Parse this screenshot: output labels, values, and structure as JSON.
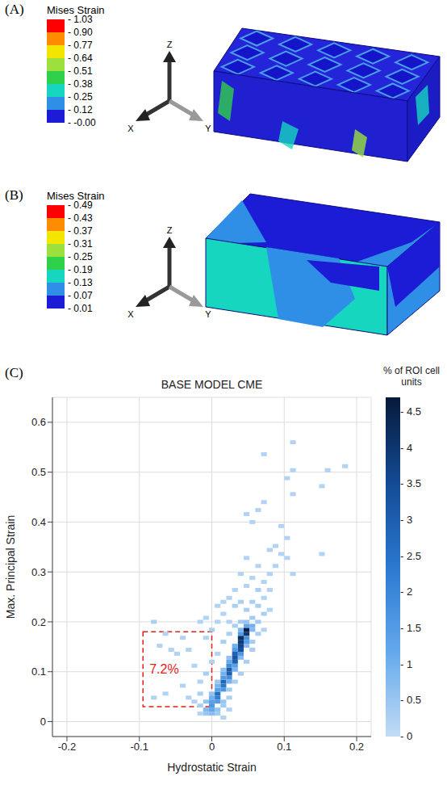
{
  "panels": [
    {
      "letter": "(A)",
      "colorbar": {
        "title": "Mises Strain",
        "ticks": [
          1.03,
          {
            "value": 0.9,
            "label": "0.90"
          },
          0.77,
          0.64,
          0.51,
          0.38,
          0.25,
          0.12,
          {
            "value": 0,
            "label": "-0.00"
          }
        ],
        "colors": [
          "#ff0000",
          "#ff8c00",
          "#f2e600",
          "#9be03c",
          "#2fd04a",
          "#16d6c0",
          "#2f8fe6",
          "#1c1cd6"
        ]
      },
      "axes": [
        "X",
        "Y",
        "Z"
      ]
    },
    {
      "letter": "(B)",
      "colorbar": {
        "title": "Mises Strain",
        "ticks": [
          0.49,
          0.43,
          0.37,
          0.31,
          0.25,
          0.19,
          0.13,
          0.07,
          0.01
        ],
        "colors": [
          "#ff0000",
          "#ff8c00",
          "#f2e600",
          "#9be03c",
          "#2fd04a",
          "#16d6c0",
          "#2f8fe6",
          "#1c1cd6"
        ]
      },
      "axes": [
        "X",
        "Y",
        "Z"
      ]
    }
  ],
  "chart_data": {
    "type": "heatmap",
    "letter": "(C)",
    "title": "BASE MODEL CME",
    "x_label": "Hydrostatic Strain",
    "y_label": "Max. Principal Strain",
    "xlim": [
      -0.22,
      0.22
    ],
    "xticks": [
      -0.2,
      -0.1,
      0,
      0.1,
      0.2
    ],
    "ylim": [
      -0.03,
      0.65
    ],
    "yticks": [
      0,
      0.1,
      0.2,
      0.3,
      0.4,
      0.5,
      0.6
    ],
    "grid": true,
    "cell_size": [
      0.008,
      0.008
    ],
    "cells": [
      [
        0,
        0.032,
        1.6
      ],
      [
        0.008,
        0.048,
        2.2
      ],
      [
        0.008,
        0.056,
        2.6
      ],
      [
        0.016,
        0.072,
        2.4
      ],
      [
        0.016,
        0.08,
        2.8
      ],
      [
        0.024,
        0.096,
        3.0
      ],
      [
        0.024,
        0.104,
        3.1
      ],
      [
        0.032,
        0.12,
        3.0
      ],
      [
        0.032,
        0.128,
        3.3
      ],
      [
        0.032,
        0.136,
        2.9
      ],
      [
        0.04,
        0.144,
        3.4
      ],
      [
        0.04,
        0.152,
        3.6
      ],
      [
        0.04,
        0.16,
        3.9
      ],
      [
        0.04,
        0.168,
        4.2
      ],
      [
        0.048,
        0.176,
        4.0
      ],
      [
        0.048,
        0.184,
        4.6
      ],
      [
        0,
        0.024,
        1.2
      ],
      [
        0,
        0.04,
        1.4
      ],
      [
        -0.008,
        0.024,
        0.8
      ],
      [
        0.008,
        0.04,
        1.5
      ],
      [
        0.008,
        0.064,
        1.4
      ],
      [
        0,
        0.048,
        1.0
      ],
      [
        0.016,
        0.064,
        1.6
      ],
      [
        0.016,
        0.088,
        1.5
      ],
      [
        0.024,
        0.088,
        1.8
      ],
      [
        0.008,
        0.072,
        0.9
      ],
      [
        0.024,
        0.112,
        1.9
      ],
      [
        0.016,
        0.096,
        1.0
      ],
      [
        0.032,
        0.112,
        1.4
      ],
      [
        0.024,
        0.12,
        1.2
      ],
      [
        0.04,
        0.136,
        1.6
      ],
      [
        0.032,
        0.144,
        1.5
      ],
      [
        0.048,
        0.16,
        1.4
      ],
      [
        0.048,
        0.168,
        1.7
      ],
      [
        0.032,
        0.152,
        1.0
      ],
      [
        0.04,
        0.176,
        1.5
      ],
      [
        0.056,
        0.192,
        1.0
      ],
      [
        0.04,
        0.184,
        0.9
      ],
      [
        0.048,
        0.192,
        1.2
      ],
      [
        0.056,
        0.184,
        0.8
      ],
      [
        0.024,
        0.08,
        1.0
      ],
      [
        0.032,
        0.104,
        0.9
      ],
      [
        0.04,
        0.128,
        0.8
      ],
      [
        0.048,
        0.152,
        0.7
      ],
      [
        0.016,
        0.104,
        0.6
      ],
      [
        0.024,
        0.128,
        0.6
      ],
      [
        0.008,
        0.08,
        0.5
      ],
      [
        -0.008,
        0.04,
        0.6
      ],
      [
        0,
        0.056,
        0.6
      ],
      [
        -0.008,
        0.016,
        0.5
      ],
      [
        0,
        0.016,
        0.7
      ],
      [
        0.008,
        0.016,
        0.4
      ],
      [
        0.008,
        0.024,
        0.6
      ],
      [
        0.016,
        0.032,
        0.4
      ],
      [
        0.016,
        0.04,
        0.5
      ],
      [
        0.024,
        0.048,
        0.3
      ],
      [
        0.024,
        0.064,
        0.4
      ],
      [
        0.032,
        0.08,
        0.3
      ],
      [
        0.04,
        0.096,
        0.3
      ],
      [
        0.048,
        0.12,
        0.3
      ],
      [
        0.056,
        0.144,
        0.3
      ],
      [
        0.056,
        0.16,
        0.4
      ],
      [
        0.064,
        0.176,
        0.3
      ],
      [
        0.064,
        0.2,
        0.4
      ],
      [
        0.056,
        0.208,
        0.4
      ],
      [
        0.048,
        0.2,
        0.5
      ],
      [
        0.04,
        0.2,
        0.4
      ],
      [
        0.032,
        0.192,
        0.3
      ],
      [
        0.024,
        0.176,
        0.3
      ],
      [
        0.016,
        0.16,
        0.3
      ],
      [
        0.008,
        0.136,
        0.2
      ],
      [
        0,
        0.12,
        0.2
      ],
      [
        -0.008,
        0.096,
        0.3
      ],
      [
        -0.016,
        0.08,
        0.2
      ],
      [
        -0.016,
        0.056,
        0.3
      ],
      [
        -0.024,
        0.04,
        0.2
      ],
      [
        -0.016,
        0.032,
        0.3
      ],
      [
        -0.032,
        0.048,
        0.2
      ],
      [
        -0.04,
        0.072,
        0.2
      ],
      [
        -0.08,
        0.048,
        0.2
      ],
      [
        -0.048,
        0.136,
        0.2
      ],
      [
        -0.064,
        0.056,
        0.2
      ],
      [
        -0.072,
        0.152,
        0.2
      ],
      [
        -0.08,
        0.2,
        0.3
      ],
      [
        -0.056,
        0.144,
        0.2
      ],
      [
        -0.064,
        0.176,
        0.2
      ],
      [
        -0.04,
        0.168,
        0.2
      ],
      [
        -0.032,
        0.144,
        0.2
      ],
      [
        -0.024,
        0.112,
        0.2
      ],
      [
        -0.008,
        0.168,
        0.2
      ],
      [
        0,
        0.184,
        0.3
      ],
      [
        0.008,
        0.2,
        0.2
      ],
      [
        0.016,
        0.216,
        0.2
      ],
      [
        0.032,
        0.232,
        0.3
      ],
      [
        0.04,
        0.24,
        0.3
      ],
      [
        0.048,
        0.224,
        0.3
      ],
      [
        0.056,
        0.24,
        0.3
      ],
      [
        0.064,
        0.232,
        0.3
      ],
      [
        0.072,
        0.216,
        0.3
      ],
      [
        0.072,
        0.248,
        0.2
      ],
      [
        0.064,
        0.264,
        0.3
      ],
      [
        0.048,
        0.272,
        0.2
      ],
      [
        0.056,
        0.288,
        0.2
      ],
      [
        0.08,
        0.264,
        0.2
      ],
      [
        0.072,
        0.28,
        0.2
      ],
      [
        0.04,
        0.296,
        0.2
      ],
      [
        0.064,
        0.312,
        0.2
      ],
      [
        0.048,
        0.328,
        0.2
      ],
      [
        0.08,
        0.296,
        0.2
      ],
      [
        0.088,
        0.312,
        0.2
      ],
      [
        0.032,
        0.264,
        0.2
      ],
      [
        0.024,
        0.248,
        0.2
      ],
      [
        0.008,
        0.232,
        0.2
      ],
      [
        0.072,
        0.184,
        0.2
      ],
      [
        0.08,
        0.224,
        0.2
      ],
      [
        -0.008,
        0.208,
        0.2
      ],
      [
        0.016,
        0.24,
        0.2
      ],
      [
        0.024,
        0.2,
        0.2
      ],
      [
        -0.016,
        0.2,
        0.2
      ],
      [
        0.016,
        0.008,
        0.2
      ],
      [
        0.024,
        0.024,
        0.2
      ],
      [
        -0.016,
        0.016,
        0.2
      ],
      [
        0.072,
        0.536,
        0.2
      ],
      [
        0.112,
        0.56,
        0.2
      ],
      [
        0.112,
        0.504,
        0.2
      ],
      [
        0.104,
        0.488,
        0.2
      ],
      [
        0.112,
        0.456,
        0.2
      ],
      [
        0.16,
        0.504,
        0.2
      ],
      [
        0.184,
        0.512,
        0.2
      ],
      [
        0.152,
        0.472,
        0.2
      ],
      [
        0.152,
        0.336,
        0.2
      ],
      [
        0.112,
        0.296,
        0.2
      ],
      [
        0.096,
        0.392,
        0.2
      ],
      [
        0.104,
        0.368,
        0.2
      ],
      [
        0.072,
        0.44,
        0.2
      ],
      [
        0.048,
        0.416,
        0.2
      ],
      [
        0.056,
        0.4,
        0.2
      ],
      [
        0.064,
        0.424,
        0.2
      ],
      [
        0.088,
        0.352,
        0.2
      ],
      [
        0.096,
        0.336,
        0.2
      ],
      [
        0.08,
        0.344,
        0.2
      ],
      [
        0.104,
        0.328,
        0.2
      ]
    ],
    "colorbar": {
      "title": "% of ROI cell units",
      "range": [
        0,
        4.7
      ],
      "ticks": [
        0,
        0.5,
        1,
        1.5,
        2,
        2.5,
        3,
        3.5,
        4,
        4.5
      ],
      "colors": [
        "#c2dcf5",
        "#64a9ec",
        "#2a78d0",
        "#134a94",
        "#061a3a"
      ]
    },
    "annotation": {
      "text": "7.2%",
      "x": [
        -0.095,
        0
      ],
      "y": [
        0.03,
        0.18
      ],
      "color": "#e0201b",
      "line_style": "dashed"
    }
  }
}
